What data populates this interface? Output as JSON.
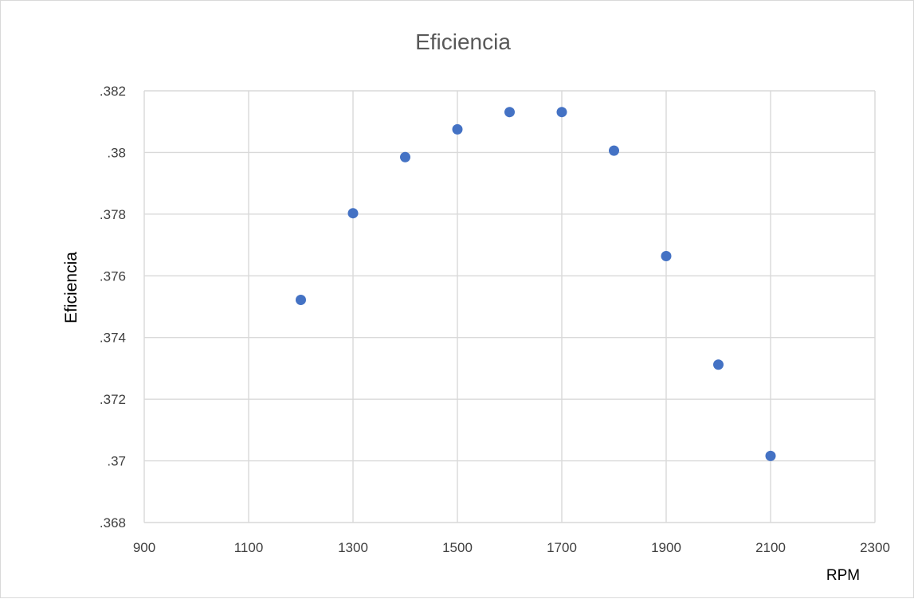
{
  "chart_data": {
    "type": "scatter",
    "title": "Eficiencia",
    "xlabel": "RPM",
    "ylabel": "Eficiencia",
    "xlim": [
      900,
      2300
    ],
    "ylim": [
      0.368,
      0.382
    ],
    "x_ticks": [
      "900",
      "1100",
      "1300",
      "1500",
      "1700",
      "1900",
      "2100",
      "2300"
    ],
    "y_ticks": [
      ".368",
      ".37",
      ".372",
      ".374",
      ".376",
      ".378",
      ".38",
      ".382"
    ],
    "grid": true,
    "marker_color": "#4472C4",
    "series": [
      {
        "x": [
          1200,
          1300,
          1400,
          1500,
          1600,
          1700,
          1800,
          1900,
          2000,
          2100
        ],
        "y": [
          0.37522,
          0.37803,
          0.37985,
          0.38075,
          0.38131,
          0.38131,
          0.38006,
          0.37664,
          0.37312,
          0.37016
        ]
      }
    ]
  }
}
